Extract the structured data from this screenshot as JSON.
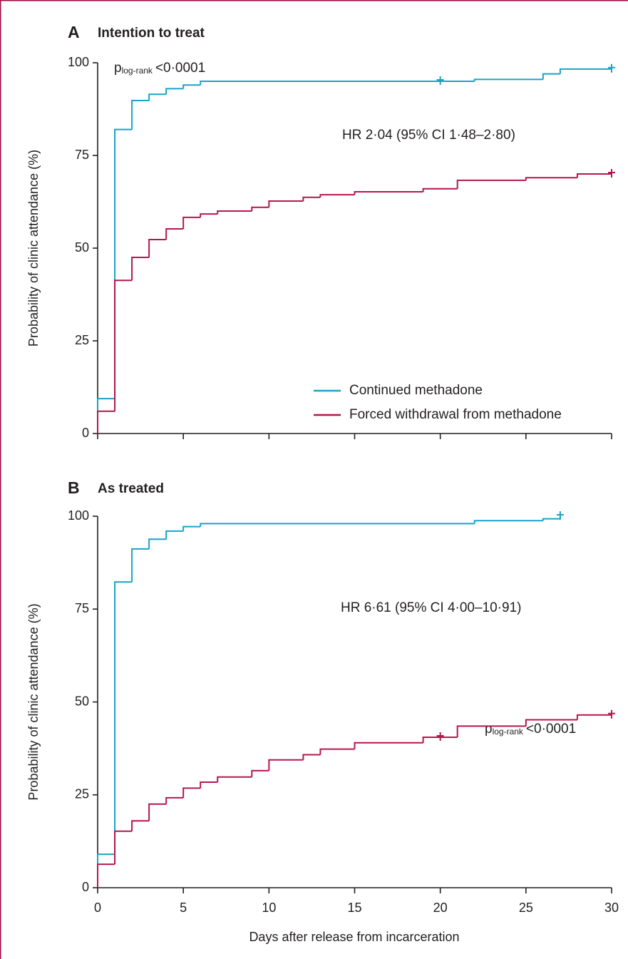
{
  "chart_data": [
    {
      "type": "line",
      "step": "post",
      "panel_label": "A",
      "title": "Intention to treat",
      "p_label": "p",
      "p_subscript": "log-rank",
      "p_value": "<0·0001",
      "annotation": "HR 2·04 (95% CI 1·48–2·80)",
      "ylabel": "Probability of clinic attendance (%)",
      "xlim": [
        0,
        30
      ],
      "xticks": [
        0,
        5,
        10,
        15,
        20,
        25,
        30
      ],
      "xtick_labels": false,
      "ylim": [
        0,
        100
      ],
      "yticks": [
        0,
        25,
        50,
        75,
        100
      ],
      "legend": "lower right",
      "series": [
        {
          "name": "Continued methadone",
          "color": "#1ba3c6",
          "x": [
            0,
            1,
            2,
            3,
            4,
            5,
            6,
            22,
            26,
            27,
            30
          ],
          "values": [
            9.4,
            82,
            89.8,
            91.5,
            93,
            94,
            95,
            95.5,
            97,
            98.3,
            98.3
          ],
          "censor_x": [
            20,
            30
          ]
        },
        {
          "name": "Forced withdrawal from methadone",
          "color": "#b5174b",
          "x": [
            0,
            1,
            2,
            3,
            4,
            5,
            6,
            7,
            9,
            10,
            12,
            13,
            15,
            19,
            21,
            25,
            28,
            30
          ],
          "values": [
            6,
            41.3,
            47.5,
            52.3,
            55.2,
            58.3,
            59.2,
            60,
            61,
            62.7,
            63.7,
            64.4,
            65.2,
            66,
            68.3,
            69,
            70,
            70
          ],
          "censor_x": [
            30
          ]
        }
      ]
    },
    {
      "type": "line",
      "step": "post",
      "panel_label": "B",
      "title": "As treated",
      "p_label": "p",
      "p_subscript": "log-rank",
      "p_value": "<0·0001",
      "annotation": "HR 6·61 (95% CI 4·00–10·91)",
      "ylabel": "Probability of clinic attendance (%)",
      "xlabel": "Days after release from incarceration",
      "xlim": [
        0,
        30
      ],
      "xticks": [
        0,
        5,
        10,
        15,
        20,
        25,
        30
      ],
      "xtick_labels": true,
      "ylim": [
        0,
        100
      ],
      "yticks": [
        0,
        25,
        50,
        75,
        100
      ],
      "series": [
        {
          "color": "#1ba3c6",
          "x": [
            0,
            1,
            2,
            3,
            4,
            5,
            6,
            22,
            26,
            27
          ],
          "values": [
            9,
            82.3,
            91.2,
            93.8,
            96,
            97.2,
            98,
            98.8,
            99.3,
            100
          ],
          "censor_x": [
            27
          ]
        },
        {
          "color": "#b5174b",
          "x": [
            0,
            1,
            2,
            3,
            4,
            5,
            6,
            7,
            9,
            10,
            12,
            13,
            15,
            19,
            21,
            25,
            28,
            30
          ],
          "values": [
            6.3,
            15.2,
            18,
            22.5,
            24.2,
            26.8,
            28.4,
            29.8,
            31.5,
            34.4,
            35.8,
            37.3,
            39,
            40.5,
            43.5,
            45.2,
            46.5,
            46.5
          ],
          "censor_x": [
            20,
            30
          ]
        }
      ]
    }
  ]
}
